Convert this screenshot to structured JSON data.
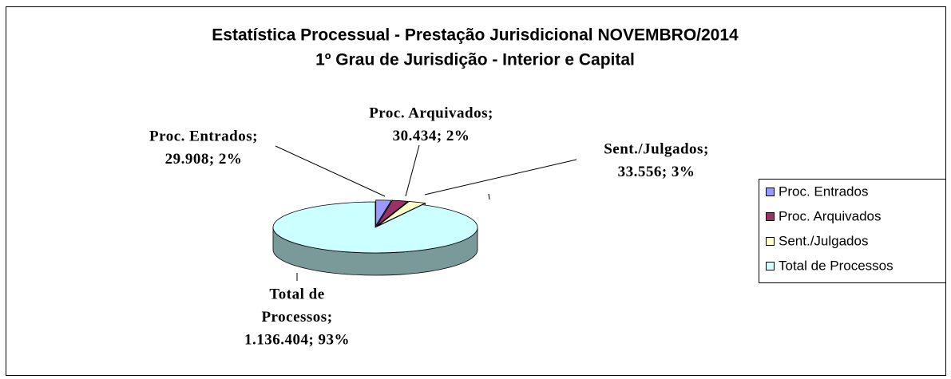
{
  "chart_data": {
    "type": "pie",
    "title": "Estatística Processual - Prestação Jurisdicional NOVEMBRO/2014",
    "subtitle": "1º Grau de Jurisdição - Interior e Capital",
    "categories": [
      "Proc. Entrados",
      "Proc. Arquivados",
      "Sent./Julgados",
      "Total de Processos"
    ],
    "values": [
      29908,
      30434,
      33556,
      1136404
    ],
    "data_labels": [
      [
        "Proc. Entrados;",
        "29.908; 2%"
      ],
      [
        "Proc. Arquivados;",
        "30.434; 2%"
      ],
      [
        "Sent./Julgados;",
        "33.556; 3%"
      ],
      [
        "Total de",
        "Processos;",
        "1.136.404; 93%"
      ]
    ],
    "colors": [
      "#9999ff",
      "#993366",
      "#ffffcc",
      "#ccffff"
    ],
    "legend": "right"
  }
}
